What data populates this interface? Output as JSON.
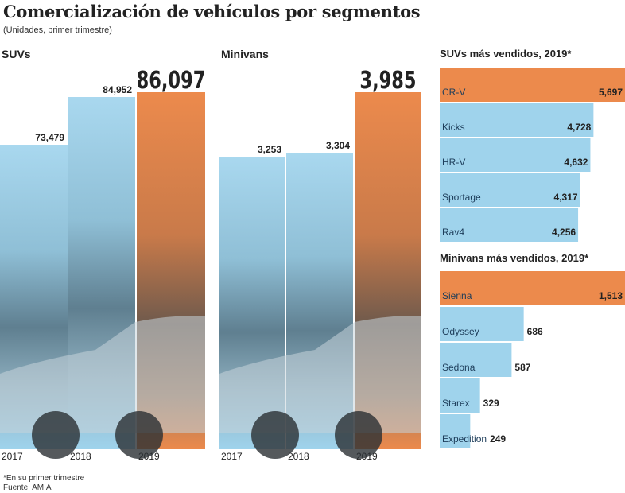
{
  "title": "Comercialización de vehículos por segmentos",
  "subtitle": "(Unidades, primer trimestre)",
  "colors": {
    "highlight": "#ec8a4c",
    "base": "#9fd3ec"
  },
  "chart_data": [
    {
      "type": "bar",
      "title": "SUVs",
      "categories": [
        "2017",
        "2018",
        "2019"
      ],
      "values": [
        73479,
        84952,
        86097
      ],
      "labels": [
        "73,479",
        "84,952",
        "86,097"
      ],
      "highlight": "2019"
    },
    {
      "type": "bar",
      "title": "Minivans",
      "categories": [
        "2017",
        "2018",
        "2019"
      ],
      "values": [
        3253,
        3304,
        3985
      ],
      "labels": [
        "3,253",
        "3,304",
        "3,985"
      ],
      "highlight": "2019"
    },
    {
      "type": "bar",
      "orientation": "horizontal",
      "title": "SUVs más vendidos, 2019*",
      "categories": [
        "CR-V",
        "Kicks",
        "HR-V",
        "Sportage",
        "Rav4"
      ],
      "values": [
        5697,
        4728,
        4632,
        4317,
        4256
      ],
      "labels": [
        "5,697",
        "4,728",
        "4,632",
        "4,317",
        "4,256"
      ],
      "highlight": "CR-V"
    },
    {
      "type": "bar",
      "orientation": "horizontal",
      "title": "Minivans más vendidos, 2019*",
      "categories": [
        "Sienna",
        "Odyssey",
        "Sedona",
        "Starex",
        "Expedition"
      ],
      "values": [
        1513,
        686,
        587,
        329,
        249
      ],
      "labels": [
        "1,513",
        "686",
        "587",
        "329",
        "249"
      ],
      "highlight": "Sienna"
    }
  ],
  "footnote": "*En su primer trimestre",
  "source": "Fuente: AMIA"
}
